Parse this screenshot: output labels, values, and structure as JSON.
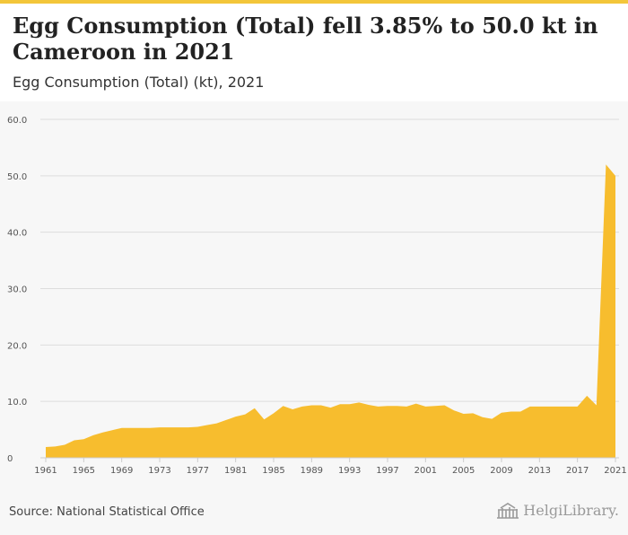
{
  "header": {
    "title": "Egg Consumption (Total) fell 3.85% to 50.0 kt in Cameroon in 2021",
    "subtitle": "Egg Consumption (Total) (kt), 2021"
  },
  "footer": {
    "source": "Source: National Statistical Office",
    "brand": "HelgiLibrary."
  },
  "colors": {
    "accent": "#f3c63a",
    "fill": "#f7bd2e",
    "grid": "#dddddd",
    "axis_text": "#555555"
  },
  "chart_data": {
    "type": "area",
    "title": "Egg Consumption (Total) (kt), 2021",
    "xlabel": "",
    "ylabel": "",
    "ylim": [
      0,
      60
    ],
    "yticks": [
      0,
      10,
      20,
      30,
      40,
      50,
      60
    ],
    "ytick_labels": [
      "0",
      "10.0",
      "20.0",
      "30.0",
      "40.0",
      "50.0",
      "60.0"
    ],
    "xticks": [
      1961,
      1965,
      1969,
      1973,
      1977,
      1981,
      1985,
      1989,
      1993,
      1997,
      2001,
      2005,
      2009,
      2013,
      2017,
      2021
    ],
    "series": [
      {
        "name": "Egg Consumption (Total) (kt)",
        "x": [
          1961,
          1962,
          1963,
          1964,
          1965,
          1966,
          1967,
          1968,
          1969,
          1970,
          1971,
          1972,
          1973,
          1974,
          1975,
          1976,
          1977,
          1978,
          1979,
          1980,
          1981,
          1982,
          1983,
          1984,
          1985,
          1986,
          1987,
          1988,
          1989,
          1990,
          1991,
          1992,
          1993,
          1994,
          1995,
          1996,
          1997,
          1998,
          1999,
          2000,
          2001,
          2002,
          2003,
          2004,
          2005,
          2006,
          2007,
          2008,
          2009,
          2010,
          2011,
          2012,
          2013,
          2014,
          2015,
          2016,
          2017,
          2018,
          2019,
          2020,
          2021
        ],
        "values": [
          1.9,
          2.0,
          2.3,
          3.1,
          3.3,
          4.0,
          4.5,
          4.9,
          5.3,
          5.3,
          5.3,
          5.3,
          5.4,
          5.4,
          5.4,
          5.4,
          5.5,
          5.8,
          6.1,
          6.7,
          7.3,
          7.7,
          8.8,
          6.8,
          7.9,
          9.2,
          8.6,
          9.1,
          9.3,
          9.3,
          8.9,
          9.5,
          9.5,
          9.8,
          9.4,
          9.1,
          9.2,
          9.2,
          9.1,
          9.6,
          9.1,
          9.2,
          9.3,
          8.4,
          7.8,
          7.9,
          7.2,
          6.9,
          8.0,
          8.2,
          8.2,
          9.1,
          9.1,
          9.1,
          9.1,
          9.1,
          9.1,
          11.0,
          9.3,
          52.0,
          50.0
        ]
      }
    ]
  }
}
